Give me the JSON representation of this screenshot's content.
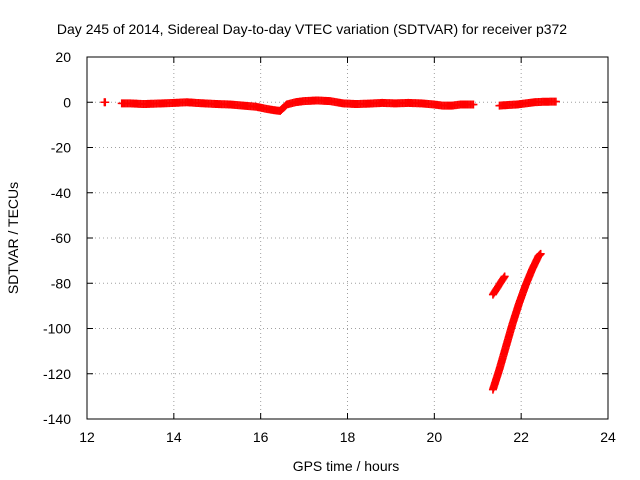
{
  "chart_data": {
    "type": "scatter",
    "title": "Day 245 of 2014, Sidereal Day-to-day VTEC variation (SDTVAR) for receiver p372",
    "xlabel": "GPS time / hours",
    "ylabel": "SDTVAR / TECUs",
    "xlim": [
      12,
      24
    ],
    "ylim": [
      -140,
      20
    ],
    "xticks": [
      12,
      14,
      16,
      18,
      20,
      22,
      24
    ],
    "yticks": [
      20,
      0,
      -20,
      -40,
      -60,
      -80,
      -100,
      -120,
      -140
    ],
    "grid": true,
    "marker": "+",
    "color": "#ff0000",
    "series": [
      {
        "name": "SDTVAR",
        "segments": [
          {
            "x": [
              12.4,
              12.42
            ],
            "y": [
              0,
              0
            ]
          },
          {
            "x": [
              12.8,
              13.0,
              13.3,
              13.6,
              14.0,
              14.3,
              14.6,
              15.0,
              15.3,
              15.6,
              15.9,
              16.1,
              16.3,
              16.45,
              16.6,
              16.8,
              17.0,
              17.3,
              17.6,
              17.9,
              18.2,
              18.5,
              18.8,
              19.1,
              19.4,
              19.7,
              20.0,
              20.2,
              20.4,
              20.6,
              20.9
            ],
            "y": [
              -0.5,
              -0.5,
              -0.8,
              -0.6,
              -0.3,
              0,
              -0.4,
              -0.8,
              -1.0,
              -1.5,
              -2.0,
              -2.8,
              -3.5,
              -3.8,
              -1.0,
              0,
              0.5,
              0.8,
              0.5,
              -0.5,
              -0.8,
              -0.6,
              -0.3,
              -0.5,
              -0.3,
              -0.5,
              -1.0,
              -1.5,
              -1.5,
              -1.0,
              -1.0
            ]
          },
          {
            "x": [
              21.5,
              21.7,
              21.9,
              22.1,
              22.3,
              22.5,
              22.8
            ],
            "y": [
              -1.5,
              -1.2,
              -1.0,
              -0.5,
              0,
              0.2,
              0.3
            ]
          },
          {
            "x": [
              21.35,
              21.45,
              21.55,
              21.62
            ],
            "y": [
              -85,
              -82,
              -79,
              -77
            ]
          },
          {
            "x": [
              21.35,
              21.5,
              21.65,
              21.8,
              21.95,
              22.1,
              22.25,
              22.4,
              22.45
            ],
            "y": [
              -127,
              -118,
              -108,
              -98,
              -89,
              -81,
              -74,
              -68,
              -67
            ]
          }
        ]
      }
    ]
  }
}
